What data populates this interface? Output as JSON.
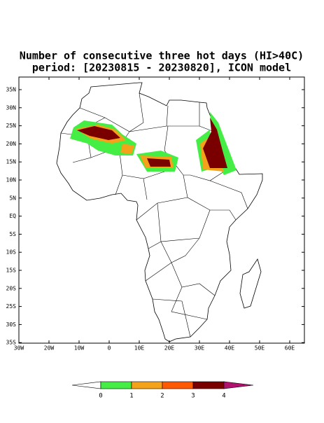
{
  "title": [
    "Number of consecutive three hot days (HI>40C)",
    "period: [20230815 - 20230820], ICON model"
  ],
  "map": {
    "lat_labels": [
      "35N",
      "30N",
      "25N",
      "20N",
      "15N",
      "10N",
      "5N",
      "EQ",
      "5S",
      "10S",
      "15S",
      "20S",
      "25S",
      "30S",
      "35S"
    ],
    "lon_labels": [
      "30W",
      "20W",
      "10W",
      "0",
      "10E",
      "20E",
      "30E",
      "40E",
      "50E",
      "60E"
    ]
  },
  "colorbar": {
    "labels": [
      "0",
      "1",
      "2",
      "3",
      "4"
    ],
    "colors": [
      "#ffffff",
      "#44ee44",
      "#f5a21b",
      "#ff5a00",
      "#7a0000",
      "#b0106e"
    ]
  }
}
